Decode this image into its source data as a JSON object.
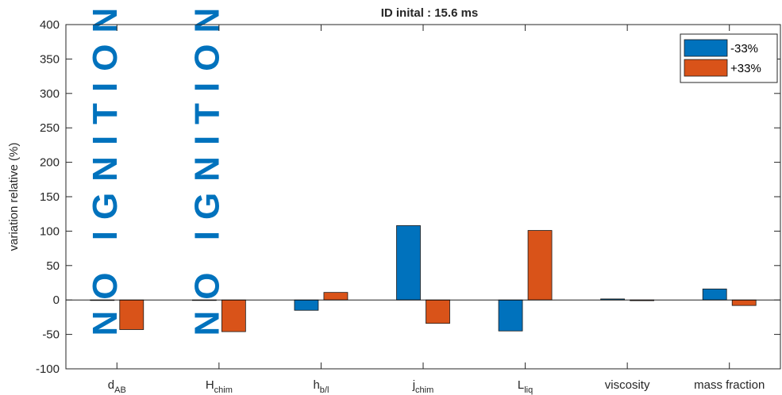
{
  "chart_data": {
    "type": "bar",
    "title": "ID inital : 15.6 ms",
    "ylabel": "variation relative (%)",
    "xlabel": "",
    "ylim": [
      -100,
      400
    ],
    "yticks": [
      -100,
      -50,
      0,
      50,
      100,
      150,
      200,
      250,
      300,
      350,
      400
    ],
    "categories": [
      {
        "main": "d",
        "sub": "AB"
      },
      {
        "main": "H",
        "sub": "chim"
      },
      {
        "main": "h",
        "sub": "b/l"
      },
      {
        "main": "j",
        "sub": "chim"
      },
      {
        "main": "L",
        "sub": "liq"
      },
      {
        "main": "viscosity",
        "sub": ""
      },
      {
        "main": "mass fraction",
        "sub": ""
      }
    ],
    "series": [
      {
        "name": "-33%",
        "color": "#0072BD",
        "values": [
          0,
          0,
          -15,
          108,
          -45,
          1.5,
          16
        ]
      },
      {
        "name": "+33%",
        "color": "#D95319",
        "values": [
          -43,
          -46,
          11,
          -34,
          101,
          -1,
          -8
        ]
      }
    ],
    "annotations": [
      {
        "text": "NO IGNITION",
        "category_index": 0,
        "color": "#0072BD"
      },
      {
        "text": "NO IGNITION",
        "category_index": 1,
        "color": "#0072BD"
      }
    ],
    "legend_position": "top-right",
    "grid": false
  }
}
